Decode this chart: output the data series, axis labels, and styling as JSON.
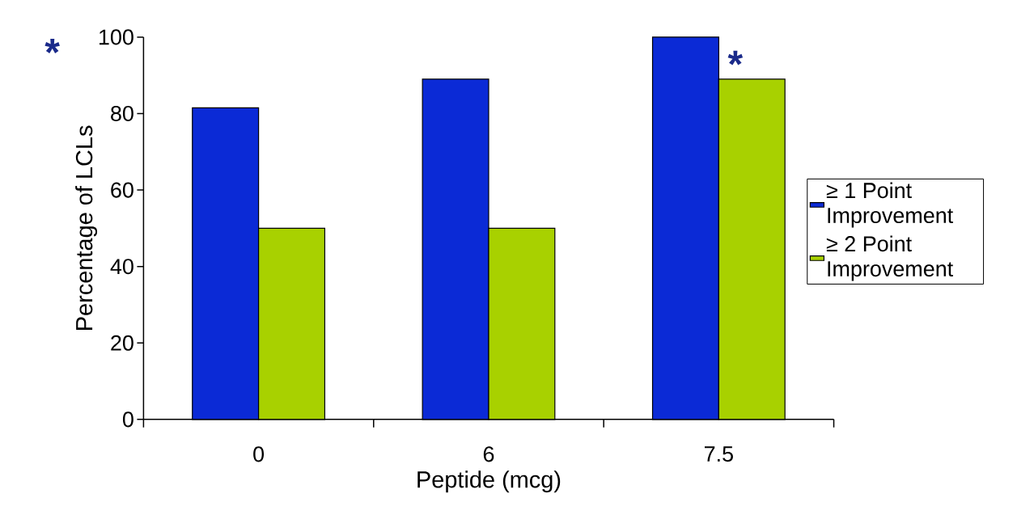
{
  "chart_data": {
    "type": "bar",
    "xlabel": "Peptide (mcg)",
    "ylabel": "Percentage of LCLs",
    "categories": [
      "0",
      "6",
      "7.5"
    ],
    "series": [
      {
        "name": "≥ 1 Point Improvement",
        "color": "#0b2ad6",
        "values": [
          81.5,
          89,
          100
        ]
      },
      {
        "name": "≥ 2 Point Improvement",
        "color": "#a8d100",
        "values": [
          50,
          50,
          89
        ]
      }
    ],
    "ylim": [
      0,
      100
    ],
    "yticks": [
      0,
      20,
      40,
      60,
      80,
      100
    ],
    "grid": false,
    "legend": "right",
    "annotations": [
      "*",
      {
        "text": "*",
        "x": "7.5",
        "y": 89
      }
    ]
  }
}
